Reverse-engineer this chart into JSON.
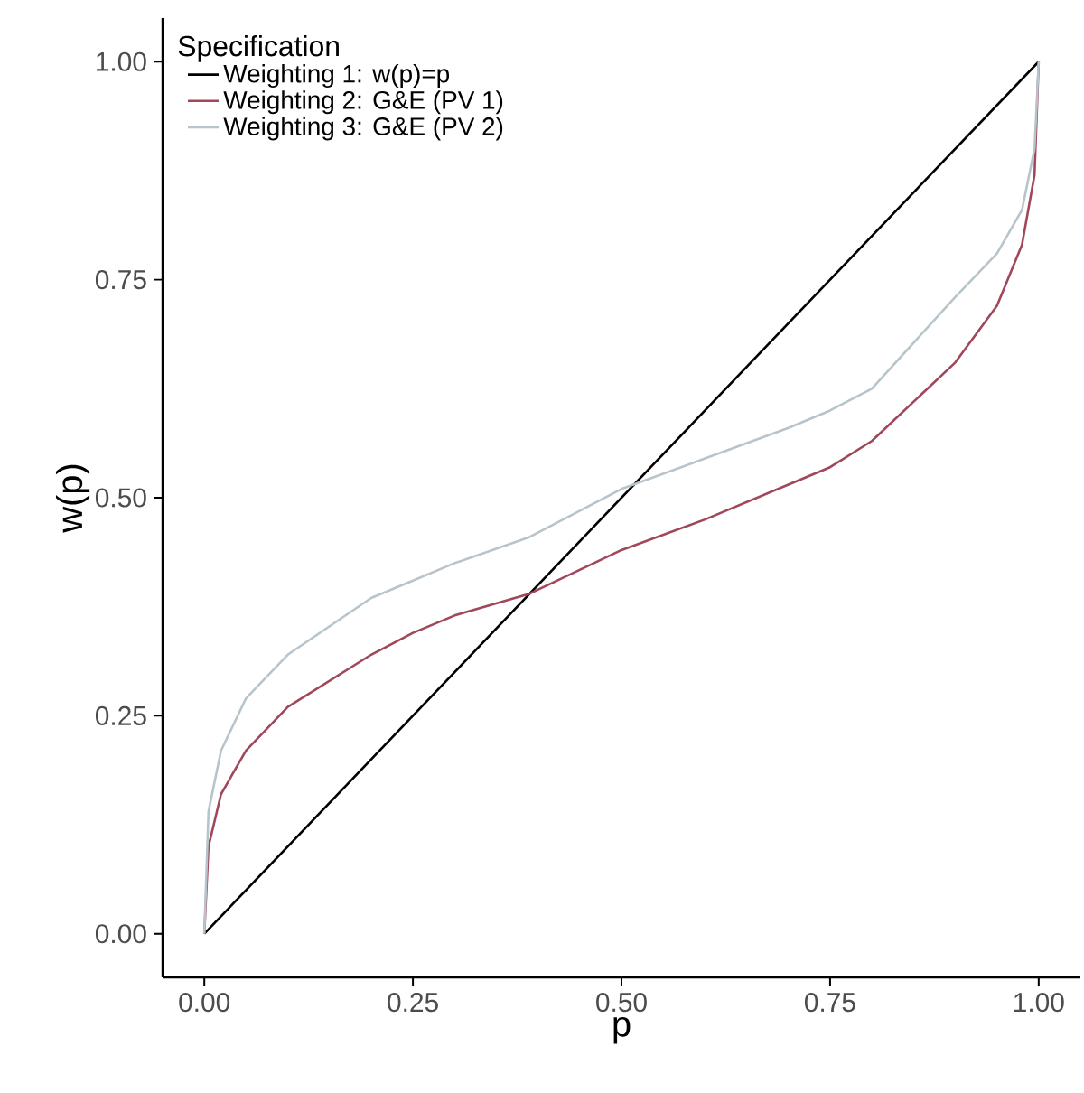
{
  "chart_data": {
    "type": "line",
    "xlabel": "p",
    "ylabel": "w(p)",
    "legend_title": "Specification",
    "legend": "top left",
    "grid": false,
    "marker": "none",
    "line_style": "solid",
    "xlim": [
      -0.05,
      1.05
    ],
    "ylim": [
      -0.05,
      1.05
    ],
    "xticks": [
      {
        "value": 0,
        "label": "0.00"
      },
      {
        "value": 0.25,
        "label": "0.25"
      },
      {
        "value": 0.5,
        "label": "0.50"
      },
      {
        "value": 0.75,
        "label": "0.75"
      },
      {
        "value": 1,
        "label": "1.00"
      }
    ],
    "yticks": [
      {
        "value": 0,
        "label": "0.00"
      },
      {
        "value": 0.25,
        "label": "0.25"
      },
      {
        "value": 0.5,
        "label": "0.50"
      },
      {
        "value": 0.75,
        "label": "0.75"
      },
      {
        "value": 1,
        "label": "1.00"
      }
    ],
    "series": [
      {
        "name": "Weighting 1: w(p)=p",
        "color": "#000000",
        "x": [
          0,
          1
        ],
        "values": [
          0,
          1
        ]
      },
      {
        "name": "Weighting 2: G&E (PV 1)",
        "color": "#a0485a",
        "x": [
          0,
          0.005,
          0.02,
          0.05,
          0.1,
          0.2,
          0.25,
          0.3,
          0.39,
          0.5,
          0.6,
          0.7,
          0.75,
          0.8,
          0.9,
          0.95,
          0.98,
          0.995,
          1
        ],
        "values": [
          0,
          0.1,
          0.16,
          0.21,
          0.26,
          0.32,
          0.345,
          0.365,
          0.39,
          0.44,
          0.475,
          0.515,
          0.535,
          0.565,
          0.655,
          0.72,
          0.79,
          0.87,
          1
        ]
      },
      {
        "name": "Weighting 3: G&E (PV 2)",
        "color": "#b8c4cc",
        "x": [
          0,
          0.005,
          0.02,
          0.05,
          0.1,
          0.2,
          0.25,
          0.3,
          0.39,
          0.5,
          0.6,
          0.7,
          0.75,
          0.8,
          0.9,
          0.95,
          0.98,
          0.995,
          1
        ],
        "values": [
          0,
          0.14,
          0.21,
          0.27,
          0.32,
          0.385,
          0.405,
          0.425,
          0.455,
          0.51,
          0.545,
          0.58,
          0.6,
          0.625,
          0.73,
          0.78,
          0.83,
          0.9,
          1
        ]
      }
    ]
  }
}
